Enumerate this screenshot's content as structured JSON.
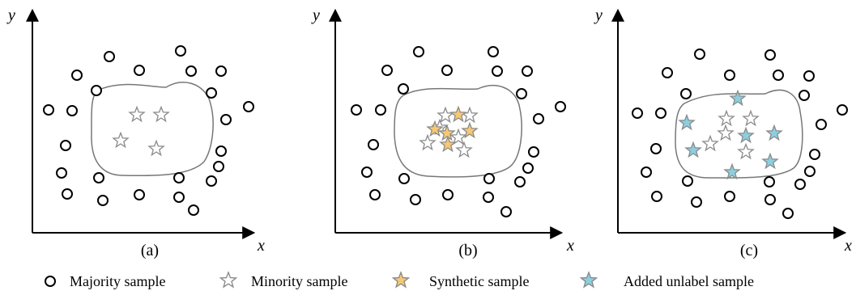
{
  "panels": [
    {
      "caption": "(a)",
      "x_label": "x",
      "y_label": "y",
      "majority_samples": 25,
      "minority_samples": 4,
      "synthetic_samples": 0,
      "added_unlabel_samples": 0
    },
    {
      "caption": "(b)",
      "x_label": "x",
      "y_label": "y",
      "majority_samples": 25,
      "minority_samples": 6,
      "synthetic_samples": 5,
      "added_unlabel_samples": 0
    },
    {
      "caption": "(c)",
      "x_label": "x",
      "y_label": "y",
      "majority_samples": 24,
      "minority_samples": 5,
      "synthetic_samples": 0,
      "added_unlabel_samples": 7
    }
  ],
  "legend": {
    "majority": "Majority sample",
    "minority": "Minority sample",
    "synthetic": "Synthetic sample",
    "added_unlabel": "Added unlabel sample"
  },
  "colors": {
    "axis": "#000000",
    "boundary": "#777777",
    "majority_stroke": "#000000",
    "minority_stroke": "#8a8a8a",
    "synthetic_fill": "#f6c874",
    "added_unlabel_fill": "#8ccfdf"
  }
}
